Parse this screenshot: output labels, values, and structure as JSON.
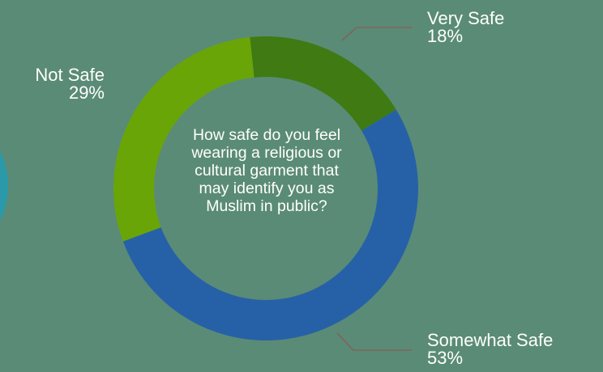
{
  "chart_data": {
    "type": "pie",
    "center_text": "How safe do you feel wearing a religious or cultural garment that may identify you as Muslim in public?",
    "slices": [
      {
        "label": "Very Safe",
        "value": 18,
        "value_label": "18%",
        "color": "#3f7a13"
      },
      {
        "label": "Somewhat Safe",
        "value": 53,
        "value_label": "53%",
        "color": "#2661a8"
      },
      {
        "label": "Not Safe",
        "value": 29,
        "value_label": "29%",
        "color": "#6aa507"
      }
    ]
  },
  "colors": {
    "background": "#5a8b76",
    "leader_line": "#8a5b54",
    "edge_arc": "#2a9aaa"
  }
}
